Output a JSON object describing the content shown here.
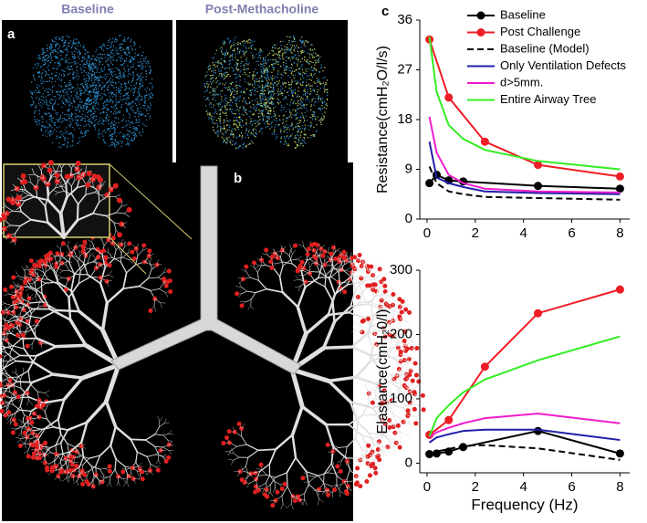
{
  "panels": {
    "a": {
      "label": "a",
      "titles": [
        "Baseline",
        "Post-Methacholine"
      ]
    },
    "b": {
      "label": "b"
    },
    "c": {
      "label": "c"
    }
  },
  "chart_data": [
    {
      "type": "line",
      "ylabel": "Resistance(cmH₂O/l/s)",
      "xlim": [
        -0.3,
        8.4
      ],
      "xticks": [
        0,
        2,
        4,
        6,
        8
      ],
      "ylim": [
        0,
        36
      ],
      "yticks": [
        0,
        9,
        18,
        27,
        36
      ],
      "legend": "top-right",
      "series": [
        {
          "name": "Baseline",
          "color": "#000000",
          "markers": true,
          "x": [
            0.1,
            0.4,
            0.9,
            1.5,
            4.6,
            8
          ],
          "values": [
            6.5,
            8,
            7,
            6.8,
            6,
            5.5
          ]
        },
        {
          "name": "Post Challenge",
          "color": "#ee1c24",
          "markers": true,
          "x": [
            0.1,
            0.9,
            2.4,
            4.6,
            8
          ],
          "values": [
            32.5,
            22,
            14,
            9.8,
            7.7
          ]
        },
        {
          "name": "Baseline (Model)",
          "color": "#000000",
          "dash": true,
          "x": [
            0.1,
            0.4,
            0.9,
            1.5,
            2.4,
            4.6,
            8
          ],
          "values": [
            9.5,
            6.5,
            5,
            4.5,
            4,
            3.8,
            3.5
          ]
        },
        {
          "name": "Only Ventilation Defects",
          "color": "#1f1fa8",
          "x": [
            0.1,
            0.4,
            0.9,
            1.5,
            2.4,
            4.6,
            8
          ],
          "values": [
            14,
            7.5,
            6.5,
            5.8,
            5,
            4.7,
            4.5
          ]
        },
        {
          "name": "d>5mm.",
          "color": "#ee1ccc",
          "x": [
            0.1,
            0.4,
            0.9,
            1.5,
            2.4,
            4.6,
            8
          ],
          "values": [
            18.5,
            12,
            8,
            6.5,
            5.5,
            5,
            4.8
          ]
        },
        {
          "name": "Entire Airway Tree",
          "color": "#33ee22",
          "x": [
            0.1,
            0.4,
            0.9,
            1.5,
            2.4,
            4.6,
            8
          ],
          "values": [
            33,
            23,
            17,
            14.5,
            12.5,
            10.5,
            9
          ]
        }
      ]
    },
    {
      "type": "line",
      "ylabel": "Elastance(cmH₂0/l)",
      "xlabel": "Frequency (Hz)",
      "xlim": [
        -0.3,
        8.4
      ],
      "xticks": [
        0,
        2,
        4,
        6,
        8
      ],
      "ylim": [
        -15,
        300
      ],
      "yticks": [
        0,
        100,
        200,
        300
      ],
      "series": [
        {
          "name": "Baseline",
          "color": "#000000",
          "markers": true,
          "x": [
            0.1,
            0.4,
            0.9,
            1.5,
            4.6,
            8
          ],
          "values": [
            14,
            15,
            18,
            25,
            50,
            15
          ]
        },
        {
          "name": "Post Challenge",
          "color": "#ee1c24",
          "markers": true,
          "x": [
            0.1,
            0.9,
            2.4,
            4.6,
            8
          ],
          "values": [
            44,
            67,
            150,
            233,
            270
          ]
        },
        {
          "name": "Baseline (Model)",
          "color": "#000000",
          "dash": true,
          "x": [
            0.1,
            0.4,
            0.9,
            1.5,
            2.4,
            4.6,
            8
          ],
          "values": [
            15,
            18,
            22,
            27,
            28,
            23,
            5
          ]
        },
        {
          "name": "Only Ventilation Defects",
          "color": "#1f1fa8",
          "x": [
            0.1,
            0.4,
            0.9,
            1.5,
            2.4,
            4.6,
            8
          ],
          "values": [
            32,
            40,
            45,
            50,
            52,
            52,
            36
          ]
        },
        {
          "name": "d>5mm.",
          "color": "#ee1ccc",
          "x": [
            0.1,
            0.4,
            0.9,
            1.5,
            2.4,
            4.6,
            8
          ],
          "values": [
            40,
            48,
            55,
            62,
            70,
            77,
            62
          ]
        },
        {
          "name": "Entire Airway Tree",
          "color": "#33ee22",
          "x": [
            0.1,
            0.4,
            0.9,
            1.5,
            2.4,
            4.6,
            8
          ],
          "values": [
            42,
            70,
            90,
            110,
            130,
            160,
            197
          ]
        }
      ]
    }
  ]
}
